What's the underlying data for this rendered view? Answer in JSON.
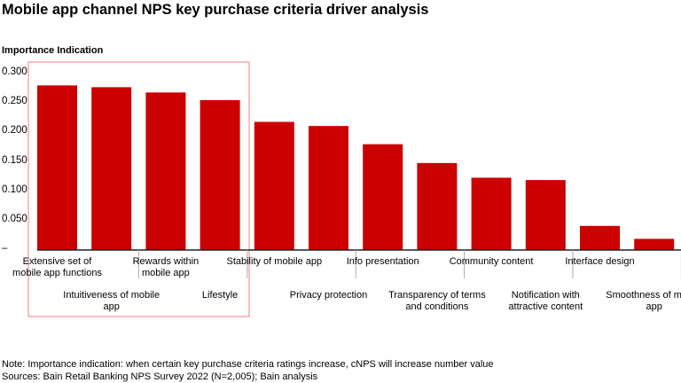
{
  "title": "Mobile app channel NPS key purchase criteria driver analysis",
  "notes": [
    "Note: Importance indication: when certain key purchase criteria ratings increase, cNPS will increase number value",
    "Sources: Bain Retail Banking NPS Survey 2022 (N=2,005); Bain analysis"
  ],
  "chart_data": {
    "type": "bar",
    "title": "Mobile app channel NPS key purchase criteria driver analysis",
    "ylabel": "Importance Indication",
    "xlabel": "",
    "ylim": [
      0,
      0.3
    ],
    "yticks": [
      "–",
      "0.050",
      "0.100",
      "0.150",
      "0.200",
      "0.250",
      "0.300"
    ],
    "grid": false,
    "bar_color": "#cc0000",
    "highlight_box_color": "#f08080",
    "highlighted_categories": [
      "Extensive set of mobile app functions",
      "Intuitiveness of mobile app",
      "Rewards within mobile app",
      "Lifestyle"
    ],
    "categories": [
      "Extensive set of mobile app functions",
      "Intuitiveness of mobile app",
      "Rewards within mobile app",
      "Lifestyle",
      "Stability of mobile app",
      "Privacy protection",
      "Info presentation",
      "Transparency of terms and conditions",
      "Community content",
      "Notification with attractive content",
      "Interface design",
      "Smoothness of mobile app"
    ],
    "values": [
      0.28,
      0.277,
      0.268,
      0.255,
      0.218,
      0.211,
      0.18,
      0.148,
      0.123,
      0.119,
      0.041,
      0.019
    ]
  }
}
